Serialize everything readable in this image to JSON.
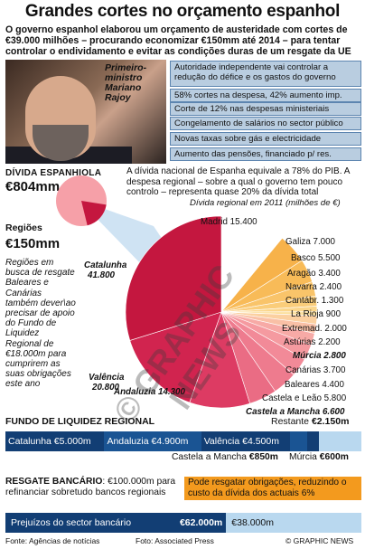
{
  "title": "Grandes cortes no orçamento espanhol",
  "intro": "O governo espanhol elaborou um orçamento de austeridade com cortes de €39.000 milhões – procurando economizar €150mm até 2014 – para tentar controlar o endividamento e evitar as condições duras de um resgate da UE",
  "photo_caption": "Primeiro-ministro Mariano Rajoy",
  "facts": [
    "Autoridade independente vai controlar a redução do défice e os gastos do governo",
    "58% cortes na despesa, 42% aumento imp.",
    "Corte de 12% nas despesas ministeriais",
    "Congelamento de salários no sector público",
    "Novas taxas sobre gás e electricidade",
    "Aumento das pensões, financiado p/ res."
  ],
  "debt": {
    "label": "DÍVIDA ESPANHIOLA",
    "value": "€804mm",
    "note": "A dívida nacional de Espanha equivale a 78% do PIB. A despesa regional – sobre a qual o governo tem pouco controlo – representa quase 20% da dívida total"
  },
  "regions": {
    "label": "Regiões",
    "value": "€150mm"
  },
  "bailout_text": "Regiões em busca de resgate Baleares e Canárias também dever\\ao precisar de apoio do Fundo de Liquidez Regional de €18.000m para cumprirem as suas obrigações este ano",
  "chart_data": {
    "type": "pie",
    "title": "Dívida regional em 2011 (milhões de €)",
    "slices": [
      {
        "name": "Madrid",
        "value": 15400,
        "label": "Madrid 15.400",
        "color": "#ffffff",
        "bold": false
      },
      {
        "name": "Galiza",
        "value": 7000,
        "label": "Galiza 7.000",
        "color": "#f7b24a",
        "bold": false
      },
      {
        "name": "Basco",
        "value": 5500,
        "label": "Basco 5.500",
        "color": "#f8bb58",
        "bold": false
      },
      {
        "name": "Aragão",
        "value": 3400,
        "label": "Aragão 3.400",
        "color": "#f9c46a",
        "bold": false
      },
      {
        "name": "Navarra",
        "value": 2400,
        "label": "Navarra 2.400",
        "color": "#facd7a",
        "bold": false
      },
      {
        "name": "Cantábr.",
        "value": 1300,
        "label": "Cantábr. 1.300",
        "color": "#fbd68b",
        "bold": false
      },
      {
        "name": "La Rioja",
        "value": 900,
        "label": "La Rioja 900",
        "color": "#fcdf9c",
        "bold": false
      },
      {
        "name": "Extremad.",
        "value": 2000,
        "label": "Extremad. 2.000",
        "color": "#fbd0a0",
        "bold": false
      },
      {
        "name": "Astúrias",
        "value": 2200,
        "label": "Astúrias 2.200",
        "color": "#f9c0a6",
        "bold": false
      },
      {
        "name": "Múrcia",
        "value": 2800,
        "label": "Múrcia 2.800",
        "color": "#f7aaa6",
        "bold": true
      },
      {
        "name": "Canárias",
        "value": 3700,
        "label": "Canárias 3.700",
        "color": "#f59aa0",
        "bold": false
      },
      {
        "name": "Baleares",
        "value": 4400,
        "label": "Baleares 4.400",
        "color": "#f28a98",
        "bold": false
      },
      {
        "name": "Castela e Leão",
        "value": 5800,
        "label": "Castela e Leão 5.800",
        "color": "#ee7b8e",
        "bold": false
      },
      {
        "name": "Castela a Mancha",
        "value": 6600,
        "label": "Castela a Mancha 6.600",
        "color": "#ea6c84",
        "bold": true
      },
      {
        "name": "Andaluzia",
        "value": 14300,
        "label": "Andaluzia 14.300",
        "color": "#dd3b63",
        "bold": true
      },
      {
        "name": "Valência",
        "value": 20800,
        "label": "Valência 20.800",
        "color": "#d1244f",
        "bold": true
      },
      {
        "name": "Catalunha",
        "value": 41800,
        "label": "Catalunha 41.800",
        "color": "#c4173f",
        "bold": true
      }
    ]
  },
  "fund": {
    "title": "FUNDO DE LIQUIDEZ REGIONAL",
    "restante_label": "Restante",
    "restante_value": "€2.150m",
    "segments": [
      {
        "name": "Catalunha",
        "label": "Catalunha €5.000m",
        "value": 5000,
        "color": "#123e74"
      },
      {
        "name": "Andaluzia",
        "label": "Andaluzia €4.900m",
        "value": 4900,
        "color": "#1a5493"
      },
      {
        "name": "Valência",
        "label": "Valência €4.500m",
        "value": 4500,
        "color": "#123e74"
      },
      {
        "name": "Castela a Mancha",
        "label": "Castela a Mancha €850m",
        "value": 850,
        "color": "#1a5493"
      },
      {
        "name": "Múrcia",
        "label": "Múrcia €600m",
        "value": 600,
        "color": "#123e74"
      }
    ],
    "sub_castela_prefix": "Castela a Mancha",
    "sub_castela_value": "€850m",
    "sub_murcia_prefix": "Múrcia",
    "sub_murcia_value": "€600m"
  },
  "resgate": {
    "label": "RESGATE BANCÁRIO",
    "text": ": €100.000m para refinanciar sobretudo bancos regionais",
    "note": "Pode resgatar obrigações, reduzindo o custo da dívida dos actuais 6%",
    "bar_label": "Prejuízos do sector bancário",
    "bar_value": "€62.000m",
    "bar_value_amount": 62000,
    "rest_value": "€38.000m",
    "rest_value_amount": 38000
  },
  "footer": {
    "source": "Fonte: Agências de notícias",
    "photo": "Foto: Associated Press",
    "brand": "© GRAPHIC NEWS"
  },
  "watermark": "© GRAPHIC NEWS",
  "colors": {
    "navy": "#123e74",
    "blue": "#1a5493",
    "light_blue": "#b9d8ef",
    "orange": "#f39a1e",
    "fact_bg": "#b9cde0"
  }
}
